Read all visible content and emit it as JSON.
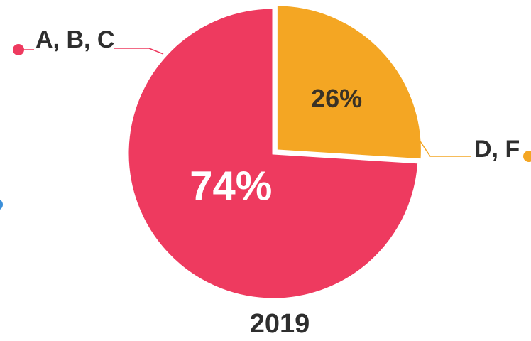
{
  "chart_data": {
    "type": "pie",
    "title": "2019",
    "categories": [
      "D, F",
      "A, B, C"
    ],
    "values": [
      26,
      74
    ],
    "value_labels": [
      "26%",
      "74%"
    ],
    "colors": [
      "#f4a623",
      "#ee3a5f"
    ]
  }
}
